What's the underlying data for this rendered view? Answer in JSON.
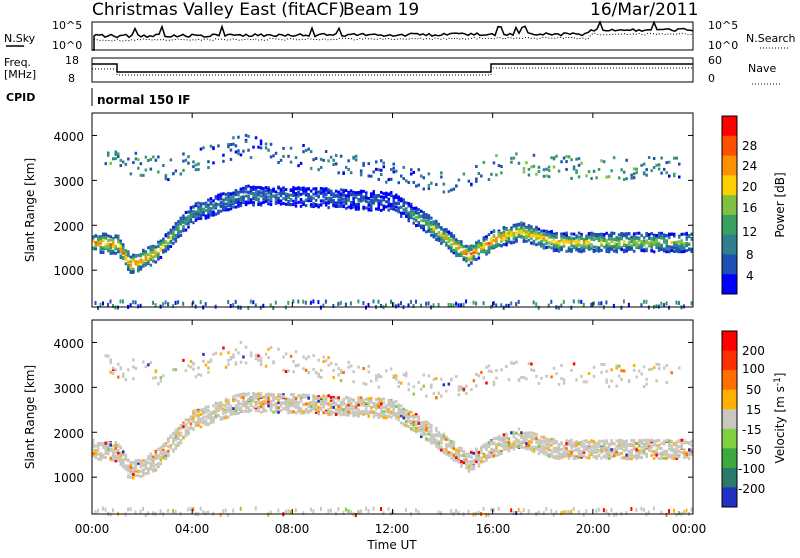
{
  "header": {
    "station": "Christmas Valley East (fitACF)",
    "beam": "Beam 19",
    "date": "16/Mar/2011"
  },
  "top_panels": {
    "nsky_label": "N.Sky",
    "nsky_ticks": [
      "10^5",
      "10^0"
    ],
    "nsearch_label": "N.Search",
    "nsearch_ticks": [
      "10^5",
      "10^0"
    ],
    "freq_label": "Freq.",
    "freq_unit": "[MHz]",
    "freq_ticks": [
      "18",
      "8"
    ],
    "nave_label": "Nave",
    "nave_ticks": [
      "60",
      "0"
    ],
    "cpid_label": "CPID",
    "cpid_value": "normal 150 IF"
  },
  "chart_data": [
    {
      "type": "heatmap",
      "panel": "power",
      "ylabel": "Slant Range [km]",
      "yticks": [
        "1000",
        "2000",
        "3000",
        "4000"
      ],
      "ylim": [
        180,
        4500
      ],
      "xlabel": "Time UT",
      "xticks": [
        "00:00",
        "04:00",
        "08:00",
        "12:00",
        "16:00",
        "20:00",
        "00:00"
      ],
      "xlim_hours": [
        0,
        24
      ],
      "colorbar": {
        "label": "Power [dB]",
        "ticks": [
          "4",
          "8",
          "12",
          "16",
          "20",
          "24",
          "28"
        ],
        "colors": [
          "#0000ff",
          "#1f4fb4",
          "#2f7f8f",
          "#3aa060",
          "#80c040",
          "#ffd000",
          "#ff9000",
          "#ff5000",
          "#ff0000"
        ]
      },
      "bands": [
        {
          "name": "main_echo",
          "t": [
            0.0,
            1.0,
            1.5,
            2.5,
            4.0,
            6.0,
            9.0,
            12.0,
            13.5,
            15.0,
            16.0,
            17.0,
            18.5,
            20.0,
            22.0,
            24.0
          ],
          "center_km": [
            1650,
            1600,
            1150,
            1400,
            2300,
            2700,
            2650,
            2550,
            2000,
            1350,
            1700,
            1900,
            1650,
            1650,
            1650,
            1650
          ],
          "level_db": [
            24,
            25,
            26,
            22,
            12,
            10,
            8,
            8,
            18,
            26,
            24,
            22,
            22,
            20,
            18,
            16
          ]
        },
        {
          "name": "upper_layer",
          "t": [
            0.5,
            3.0,
            6.0,
            14.0,
            16.5,
            20.0,
            23.5
          ],
          "center_km": [
            3500,
            3300,
            3800,
            3000,
            3400,
            3300,
            3300
          ],
          "level_db": [
            12,
            10,
            8,
            8,
            12,
            12,
            10
          ]
        }
      ]
    },
    {
      "type": "heatmap",
      "panel": "velocity",
      "ylabel": "Slant Range [km]",
      "yticks": [
        "1000",
        "2000",
        "3000",
        "4000"
      ],
      "ylim": [
        180,
        4500
      ],
      "xlabel": "Time UT",
      "xticks": [
        "00:00",
        "04:00",
        "08:00",
        "12:00",
        "16:00",
        "20:00",
        "00:00"
      ],
      "xlim_hours": [
        0,
        24
      ],
      "colorbar": {
        "label": "Velocity [m s^-1]",
        "ticks": [
          "200",
          "100",
          "50",
          "15",
          "-15",
          "-50",
          "-100",
          "-200"
        ],
        "colors": [
          "#2030c0",
          "#2a7a6a",
          "#3caa3c",
          "#80d040",
          "#c8c8c0",
          "#ffb000",
          "#ff7000",
          "#ff3000",
          "#ff0000"
        ]
      }
    }
  ]
}
